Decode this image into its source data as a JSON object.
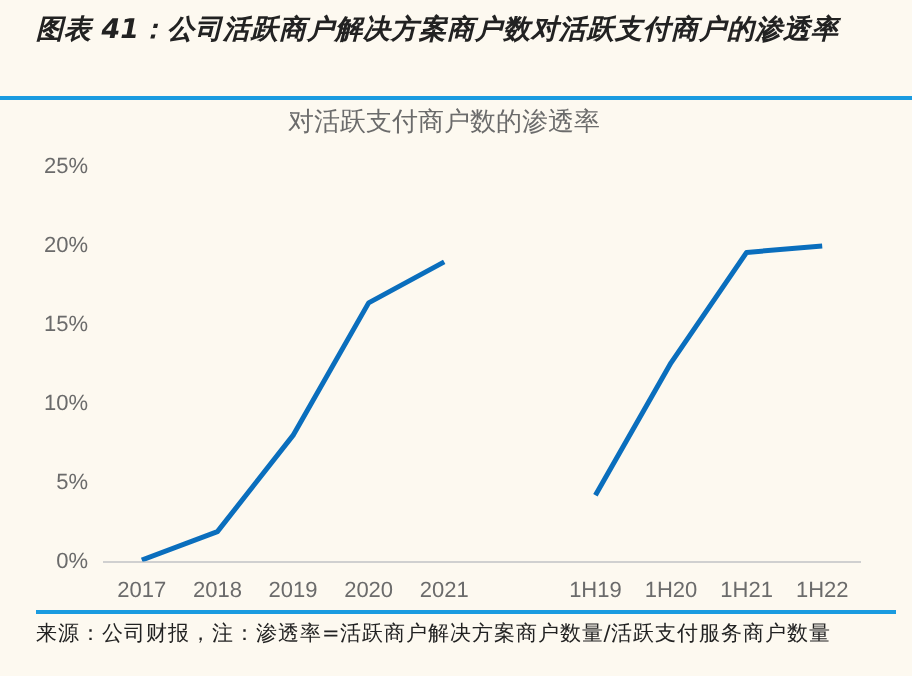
{
  "chart_data": {
    "type": "line",
    "title": "图表 41：公司活跃商户解决方案商户数对活跃支付商户的渗透率",
    "subtitle": "对活跃支付商户数的渗透率",
    "categories": [
      "2017",
      "2018",
      "2019",
      "2020",
      "2021",
      null,
      "1H19",
      "1H20",
      "1H21",
      "1H22"
    ],
    "series": [
      {
        "color": "#0a6ebd",
        "values": [
          0.1,
          1.9,
          8.0,
          16.4,
          19.0,
          null,
          null,
          null,
          null,
          null
        ]
      },
      {
        "color": "#0a6ebd",
        "values": [
          null,
          null,
          null,
          null,
          null,
          null,
          4.2,
          12.6,
          19.6,
          20.0
        ]
      }
    ],
    "ylim": [
      0,
      25
    ],
    "yticks": [
      {
        "value": 0,
        "label": "0%"
      },
      {
        "value": 5,
        "label": "5%"
      },
      {
        "value": 10,
        "label": "10%"
      },
      {
        "value": 15,
        "label": "15%"
      },
      {
        "value": 20,
        "label": "20%"
      },
      {
        "value": 25,
        "label": "25%"
      }
    ],
    "grid": false,
    "legend": false,
    "marker": "none",
    "line_style": "solid",
    "annotations": [
      "来源：公司财报，注：渗透率=活跃商户解决方案商户数量/活跃支付服务商户数量"
    ]
  }
}
